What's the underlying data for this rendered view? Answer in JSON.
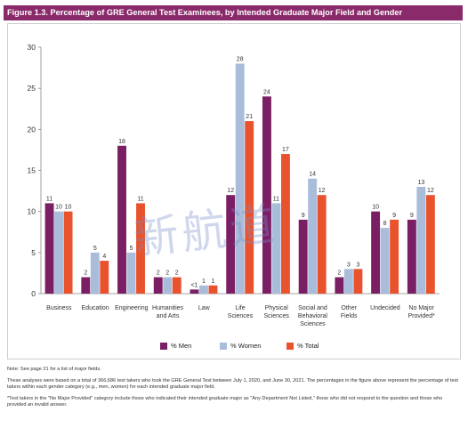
{
  "header": {
    "figure_title": "Figure 1.3. Percentage of GRE General Test Examinees, by Intended Graduate Major Field and Gender"
  },
  "colors": {
    "title_bar": "#8a2a6a",
    "men": "#7a1f63",
    "women": "#a9bddb",
    "total": "#e8532e"
  },
  "chart_data": {
    "type": "bar",
    "categories": [
      [
        "Business"
      ],
      [
        "Education"
      ],
      [
        "Engineering"
      ],
      [
        "Humanities",
        "and Arts"
      ],
      [
        "Law"
      ],
      [
        "Life",
        "Sciences"
      ],
      [
        "Physical",
        "Sciences"
      ],
      [
        "Social and",
        "Behavioral",
        "Sciences"
      ],
      [
        "Other",
        "Fields"
      ],
      [
        "Undecided"
      ],
      [
        "No Major",
        "Provided*"
      ]
    ],
    "series": [
      {
        "name": "% Men",
        "values": [
          11,
          2,
          18,
          2,
          0.5,
          12,
          24,
          9,
          2,
          10,
          9
        ],
        "labels": [
          "11",
          "2",
          "18",
          "2",
          "<1",
          "12",
          "24",
          "9",
          "2",
          "10",
          "9"
        ]
      },
      {
        "name": "% Women",
        "values": [
          10,
          5,
          5,
          2,
          1,
          28,
          11,
          14,
          3,
          8,
          13
        ],
        "labels": [
          "10",
          "5",
          "5",
          "2",
          "1",
          "28",
          "11",
          "14",
          "3",
          "8",
          "13"
        ]
      },
      {
        "name": "% Total",
        "values": [
          10,
          4,
          11,
          2,
          1,
          21,
          17,
          12,
          3,
          9,
          12
        ],
        "labels": [
          "10",
          "4",
          "11",
          "2",
          "1",
          "21",
          "17",
          "12",
          "3",
          "9",
          "12"
        ]
      }
    ],
    "yticks": [
      0,
      5,
      10,
      15,
      20,
      25,
      30
    ],
    "ylim": [
      0,
      30
    ],
    "grid": false,
    "legend_position": "bottom"
  },
  "watermark": {
    "text": "新航道"
  },
  "notes": {
    "note_line": "Note: See page 21 for a list of major fields.",
    "analyses_line": "These analyses were based on a total of 366,686 test takers who took the GRE General Test between July 1, 2020, and June 30, 2021. The percentages in the figure above represent the percentage of test takers within each gender category (e.g., men, women) for each intended graduate major field.",
    "footnote_line": "*Test takers in the \"No Major Provided\" category include those who indicated their intended graduate major as \"Any Department Not Listed,\" those who did not respond to the question and those who provided an invalid answer."
  }
}
